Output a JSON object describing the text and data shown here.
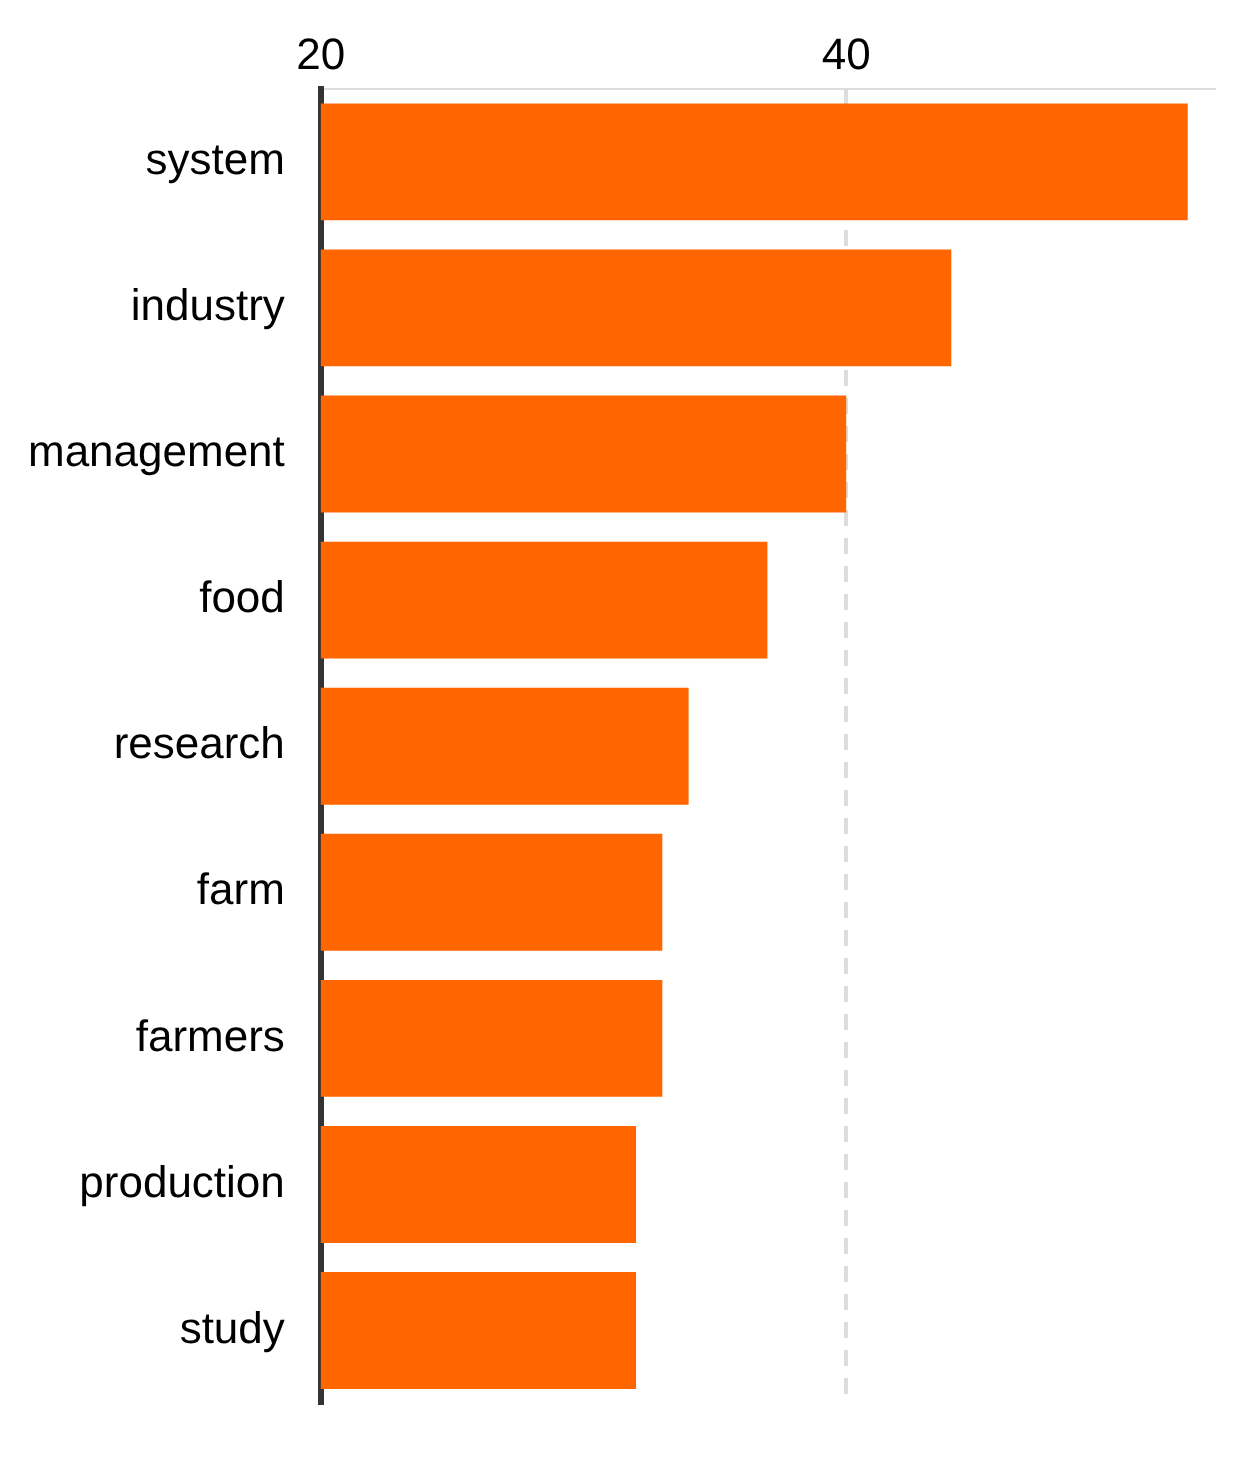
{
  "chart_data": {
    "type": "bar",
    "orientation": "horizontal",
    "categories": [
      "system",
      "industry",
      "management",
      "food",
      "research",
      "farm",
      "farmers",
      "production",
      "study"
    ],
    "values": [
      53,
      44,
      40,
      37,
      34,
      33,
      33,
      32,
      32
    ],
    "color": "#ff6600",
    "xlim": [
      20,
      54
    ],
    "xticks": [
      20,
      40
    ],
    "grid": "x",
    "legend": false
  }
}
